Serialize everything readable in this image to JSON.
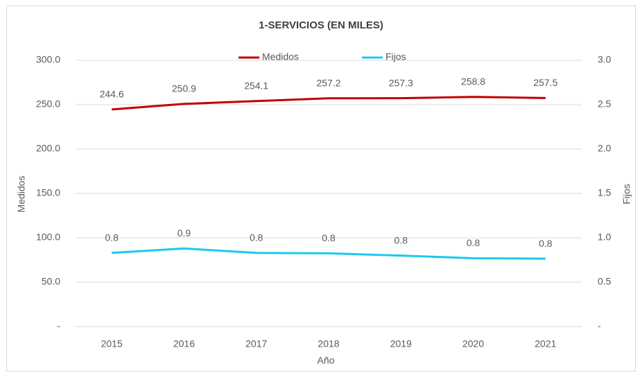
{
  "chart_data": {
    "type": "line",
    "title": "1-SERVICIOS (EN MILES)",
    "x_label": "Año",
    "y_label": "Medidos",
    "y2_label": "Fijos",
    "categories": [
      "2015",
      "2016",
      "2017",
      "2018",
      "2019",
      "2020",
      "2021"
    ],
    "series": [
      {
        "name": "Medidos",
        "color": "#c00000",
        "values": [
          244.6,
          250.9,
          254.1,
          257.2,
          257.3,
          258.8,
          257.5
        ]
      },
      {
        "name": "Fijos",
        "color": "#1cc8f2",
        "axis": "y2",
        "values": [
          0.83,
          0.88,
          0.83,
          0.825,
          0.8,
          0.77,
          0.765
        ],
        "value_labels": [
          "0.8",
          "0.9",
          "0.8",
          "0.8",
          "0.8",
          "0.8",
          "0.8"
        ]
      }
    ],
    "ylim": [
      0,
      300
    ],
    "yticks": [
      {
        "value": 0,
        "label": "-"
      },
      {
        "value": 50,
        "label": "50.0"
      },
      {
        "value": 100,
        "label": "100.0"
      },
      {
        "value": 150,
        "label": "150.0"
      },
      {
        "value": 200,
        "label": "200.0"
      },
      {
        "value": 250,
        "label": "250.0"
      },
      {
        "value": 300,
        "label": "300.0"
      }
    ],
    "y2lim": [
      0,
      3
    ],
    "y2ticks": [
      {
        "value": 0,
        "label": "-"
      },
      0.5,
      {
        "value": 1,
        "label": "1.0"
      },
      1.5,
      {
        "value": 2,
        "label": "2.0"
      },
      2.5,
      {
        "value": 3,
        "label": "3.0"
      }
    ],
    "grid": true,
    "legend": "top"
  }
}
